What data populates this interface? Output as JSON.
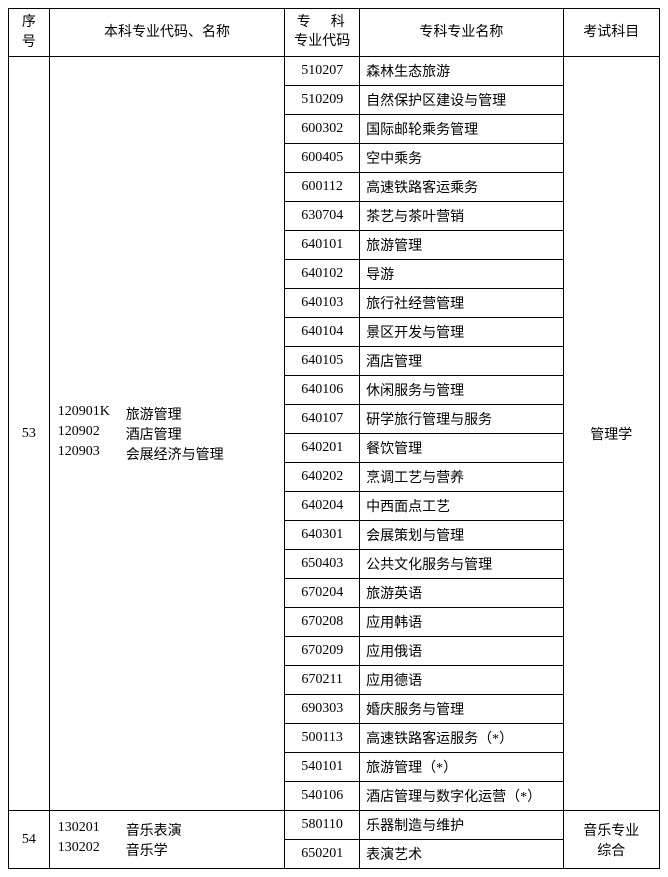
{
  "headers": {
    "seq": "序号",
    "benke": "本科专业代码、名称",
    "zhuanke_code_l1": "专　科",
    "zhuanke_code_l2": "专业代码",
    "zhuanke_name": "专科专业名称",
    "exam": "考试科目"
  },
  "groups": [
    {
      "seq": "53",
      "benke": [
        {
          "code": "120901K",
          "name": "旅游管理"
        },
        {
          "code": "120902",
          "name": "酒店管理"
        },
        {
          "code": "120903",
          "name": "会展经济与管理"
        }
      ],
      "exam": "管理学",
      "rows": [
        {
          "code": "510207",
          "name": "森林生态旅游"
        },
        {
          "code": "510209",
          "name": "自然保护区建设与管理"
        },
        {
          "code": "600302",
          "name": "国际邮轮乘务管理"
        },
        {
          "code": "600405",
          "name": "空中乘务"
        },
        {
          "code": "600112",
          "name": "高速铁路客运乘务"
        },
        {
          "code": "630704",
          "name": "茶艺与茶叶营销"
        },
        {
          "code": "640101",
          "name": "旅游管理"
        },
        {
          "code": "640102",
          "name": "导游"
        },
        {
          "code": "640103",
          "name": "旅行社经营管理"
        },
        {
          "code": "640104",
          "name": "景区开发与管理"
        },
        {
          "code": "640105",
          "name": "酒店管理"
        },
        {
          "code": "640106",
          "name": "休闲服务与管理"
        },
        {
          "code": "640107",
          "name": "研学旅行管理与服务"
        },
        {
          "code": "640201",
          "name": "餐饮管理"
        },
        {
          "code": "640202",
          "name": "烹调工艺与营养"
        },
        {
          "code": "640204",
          "name": "中西面点工艺"
        },
        {
          "code": "640301",
          "name": "会展策划与管理"
        },
        {
          "code": "650403",
          "name": "公共文化服务与管理"
        },
        {
          "code": "670204",
          "name": "旅游英语"
        },
        {
          "code": "670208",
          "name": "应用韩语"
        },
        {
          "code": "670209",
          "name": "应用俄语"
        },
        {
          "code": "670211",
          "name": "应用德语"
        },
        {
          "code": "690303",
          "name": "婚庆服务与管理"
        },
        {
          "code": "500113",
          "name": "高速铁路客运服务（*）"
        },
        {
          "code": "540101",
          "name": "旅游管理（*）"
        },
        {
          "code": "540106",
          "name": "酒店管理与数字化运营（*）"
        }
      ]
    },
    {
      "seq": "54",
      "benke": [
        {
          "code": "130201",
          "name": "音乐表演"
        },
        {
          "code": "130202",
          "name": "音乐学"
        }
      ],
      "exam_l1": "音乐专业",
      "exam_l2": "综合",
      "rows": [
        {
          "code": "580110",
          "name": "乐器制造与维护"
        },
        {
          "code": "650201",
          "name": "表演艺术"
        }
      ]
    }
  ],
  "style": {
    "border_color": "#000000",
    "text_color": "#000000",
    "background_color": "#ffffff",
    "font_size": 14,
    "font_family": "SimSun"
  }
}
